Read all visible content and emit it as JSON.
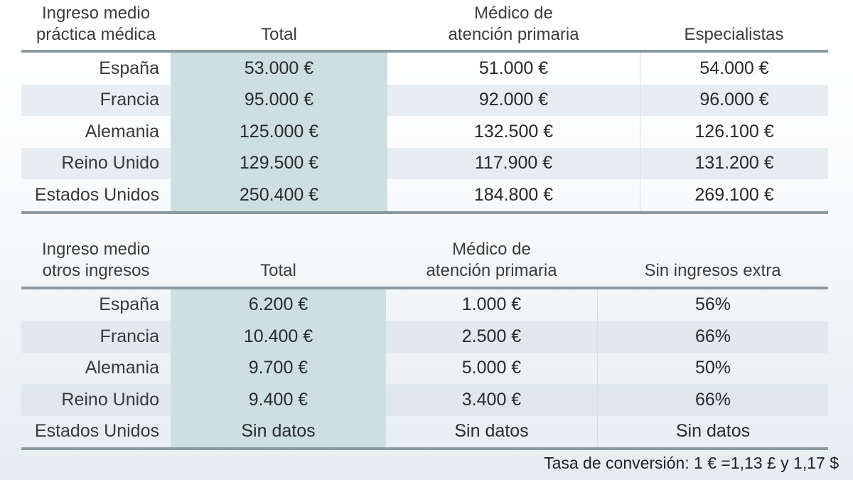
{
  "colors": {
    "accent_column": "#cddfe1",
    "row_stripe": "#e3eaf0",
    "rule": "#8b9aa1",
    "divider": "#d9dfe3",
    "text": "#333333"
  },
  "chart_data": [
    {
      "type": "table",
      "title": "Ingreso medio\npráctica médica",
      "columns": [
        "Total",
        "Médico de\natención primaria",
        "Especialistas"
      ],
      "rows": [
        {
          "label": "España",
          "values": [
            "53.000 €",
            "51.000 €",
            "54.000 €"
          ]
        },
        {
          "label": "Francia",
          "values": [
            "95.000 €",
            "92.000 €",
            "96.000 €"
          ]
        },
        {
          "label": "Alemania",
          "values": [
            "125.000 €",
            "132.500 €",
            "126.100 €"
          ]
        },
        {
          "label": "Reino Unido",
          "values": [
            "129.500 €",
            "117.900 €",
            "131.200 €"
          ]
        },
        {
          "label": "Estados Unidos",
          "values": [
            "250.400 €",
            "184.800 €",
            "269.100 €"
          ]
        }
      ]
    },
    {
      "type": "table",
      "title": "Ingreso medio\notros ingresos",
      "columns": [
        "Total",
        "Médico de\natención primaria",
        "Sin ingresos extra"
      ],
      "rows": [
        {
          "label": "España",
          "values": [
            "6.200 €",
            "1.000 €",
            "56%"
          ]
        },
        {
          "label": "Francia",
          "values": [
            "10.400 €",
            "2.500 €",
            "66%"
          ]
        },
        {
          "label": "Alemania",
          "values": [
            "9.700 €",
            "5.000 €",
            "50%"
          ]
        },
        {
          "label": "Reino Unido",
          "values": [
            "9.400 €",
            "3.400 €",
            "66%"
          ]
        },
        {
          "label": "Estados Unidos",
          "values": [
            "Sin datos",
            "Sin datos",
            "Sin datos"
          ]
        }
      ]
    }
  ],
  "footer": {
    "note": "Tasa de conversión: 1 € =1,13 £ y 1,17 $"
  }
}
